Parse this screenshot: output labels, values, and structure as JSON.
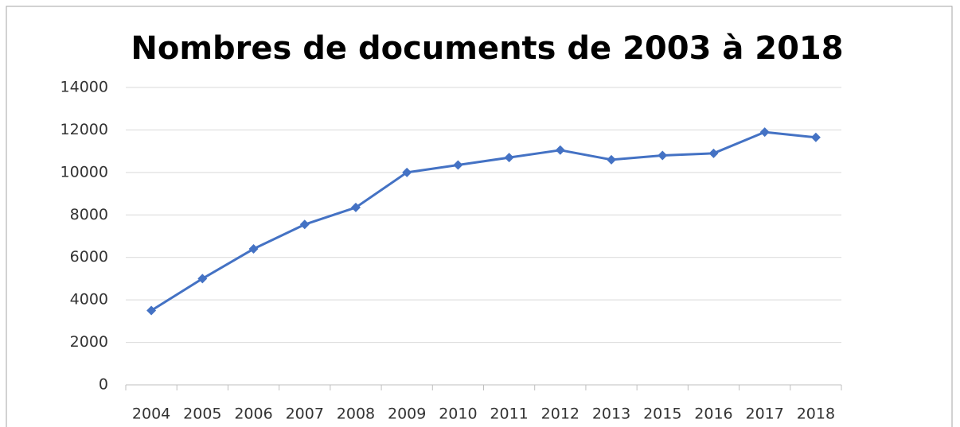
{
  "chart_data": {
    "type": "line",
    "title": "Nombres de documents de 2003 à 2018",
    "categories": [
      "2004",
      "2005",
      "2006",
      "2007",
      "2008",
      "2009",
      "2010",
      "2011",
      "2012",
      "2013",
      "2015",
      "2016",
      "2017",
      "2018"
    ],
    "values": [
      3500,
      5000,
      6400,
      7550,
      8350,
      10000,
      10350,
      10700,
      11050,
      10600,
      10800,
      10900,
      11900,
      11650
    ],
    "color": "#4472c4",
    "ylim": [
      0,
      14000
    ],
    "yticks": [
      0,
      2000,
      4000,
      6000,
      8000,
      10000,
      12000,
      14000
    ],
    "grid": true
  }
}
